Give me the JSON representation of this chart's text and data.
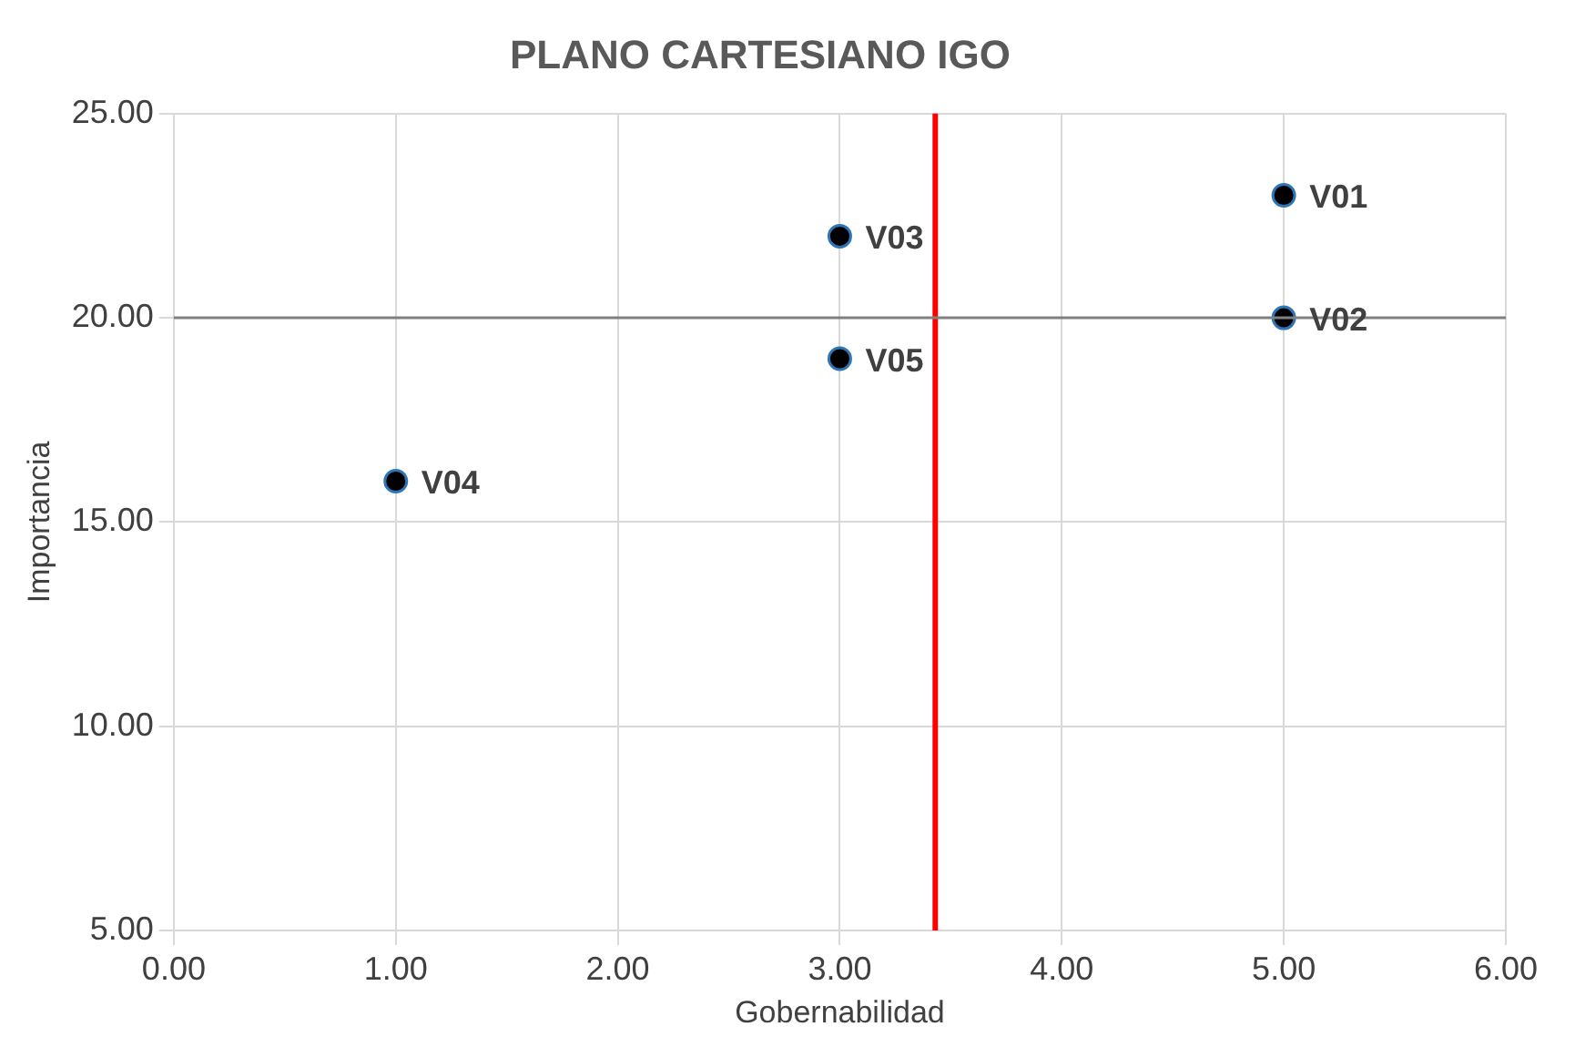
{
  "chart_data": {
    "type": "scatter",
    "title": "PLANO CARTESIANO IGO",
    "xlabel": "Gobernabilidad",
    "ylabel": "Importancia",
    "x": [
      5,
      5,
      3,
      1,
      3
    ],
    "series": [
      {
        "color": "#000000",
        "values": [
          23,
          20,
          22,
          16,
          19
        ]
      }
    ],
    "marker": "circle",
    "xlim": [
      0,
      6
    ],
    "xticks": [
      {
        "value": 0,
        "label": "0.00"
      },
      {
        "value": 1,
        "label": "1.00"
      },
      {
        "value": 2,
        "label": "2.00"
      },
      {
        "value": 3,
        "label": "3.00"
      },
      {
        "value": 4,
        "label": "4.00"
      },
      {
        "value": 5,
        "label": "5.00"
      },
      {
        "value": 6,
        "label": "6.00"
      }
    ],
    "ylim": [
      5,
      25
    ],
    "yticks": [
      {
        "value": 5,
        "label": "5.00"
      },
      {
        "value": 10,
        "label": "10.00"
      },
      {
        "value": 15,
        "label": "15.00"
      },
      {
        "value": 20,
        "label": "20.00"
      },
      {
        "value": 25,
        "label": "25.00"
      }
    ],
    "grid": true,
    "legend": false,
    "ref_lines": [
      {
        "axis": "x",
        "value": 3.43,
        "color": "#ff0000"
      },
      {
        "axis": "y",
        "value": 20,
        "color": "#808080"
      }
    ],
    "annotations": [
      {
        "text": "V01",
        "x": 5,
        "y": 23
      },
      {
        "text": "V02",
        "x": 5,
        "y": 20
      },
      {
        "text": "V03",
        "x": 3,
        "y": 22
      },
      {
        "text": "V04",
        "x": 1,
        "y": 16
      },
      {
        "text": "V05",
        "x": 3,
        "y": 19
      }
    ]
  }
}
